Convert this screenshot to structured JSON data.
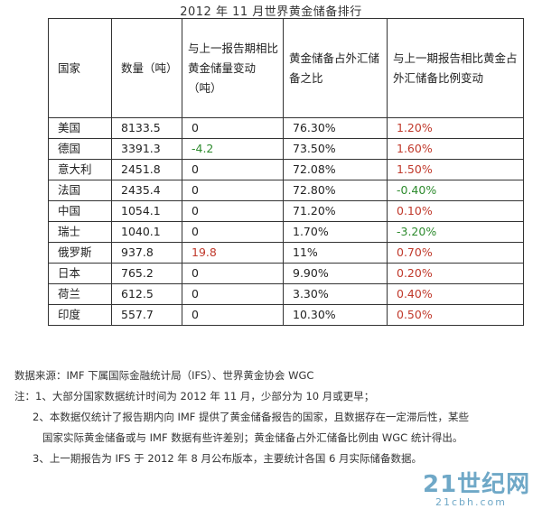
{
  "title": "2012 年 11 月世界黄金储备排行",
  "table": {
    "headers": [
      "国家",
      "数量（吨）",
      "与上一报告期相比黄金储量变动（吨）",
      "黄金储备占外汇储备之比",
      "与上一期报告相比黄金占外汇储备比例变动"
    ],
    "rows": [
      {
        "country": "美国",
        "qty": "8133.5",
        "change": "0",
        "ratio": "76.30%",
        "rchange": "1.20%"
      },
      {
        "country": "德国",
        "qty": "3391.3",
        "change": "-4.2",
        "ratio": "73.50%",
        "rchange": "1.60%"
      },
      {
        "country": "意大利",
        "qty": "2451.8",
        "change": "0",
        "ratio": "72.08%",
        "rchange": "1.50%"
      },
      {
        "country": "法国",
        "qty": "2435.4",
        "change": "0",
        "ratio": "72.80%",
        "rchange": "-0.40%"
      },
      {
        "country": "中国",
        "qty": "1054.1",
        "change": "0",
        "ratio": "71.20%",
        "rchange": "0.10%"
      },
      {
        "country": "瑞士",
        "qty": "1040.1",
        "change": "0",
        "ratio": "1.70%",
        "rchange": "-3.20%"
      },
      {
        "country": "俄罗斯",
        "qty": "937.8",
        "change": "19.8",
        "ratio": "11%",
        "rchange": "0.70%"
      },
      {
        "country": "日本",
        "qty": "765.2",
        "change": "0",
        "ratio": "9.90%",
        "rchange": "0.20%"
      },
      {
        "country": "荷兰",
        "qty": "612.5",
        "change": "0",
        "ratio": "3.30%",
        "rchange": "0.40%"
      },
      {
        "country": "印度",
        "qty": "557.7",
        "change": "0",
        "ratio": "10.30%",
        "rchange": "0.50%"
      }
    ]
  },
  "notes": {
    "source": "数据来源：IMF 下属国际金融统计局（IFS）、世界黄金协会 WGC",
    "note1": "注：1、大部分国家数据统计时间为 2012 年 11 月，少部分为 10 月或更早；",
    "note2a": "2、本数据仅统计了报告期内向 IMF 提供了黄金储备报告的国家，且数据存在一定滞后性，某些",
    "note2b": "国家实际黄金储备或与 IMF 数据有些许差别；黄金储备占外汇储备比例由 WGC 统计得出。",
    "note3": "3、上一期报告为 IFS 于 2012 年 8 月公布版本，主要统计各国 6 月实际储备数据。"
  },
  "watermark": {
    "main": "21世纪网",
    "sub": "21cbh.com"
  },
  "colors": {
    "positive": "#c0392b",
    "negative": "#2e8b2e",
    "border": "#333333",
    "watermark": "#6fa8c7"
  }
}
